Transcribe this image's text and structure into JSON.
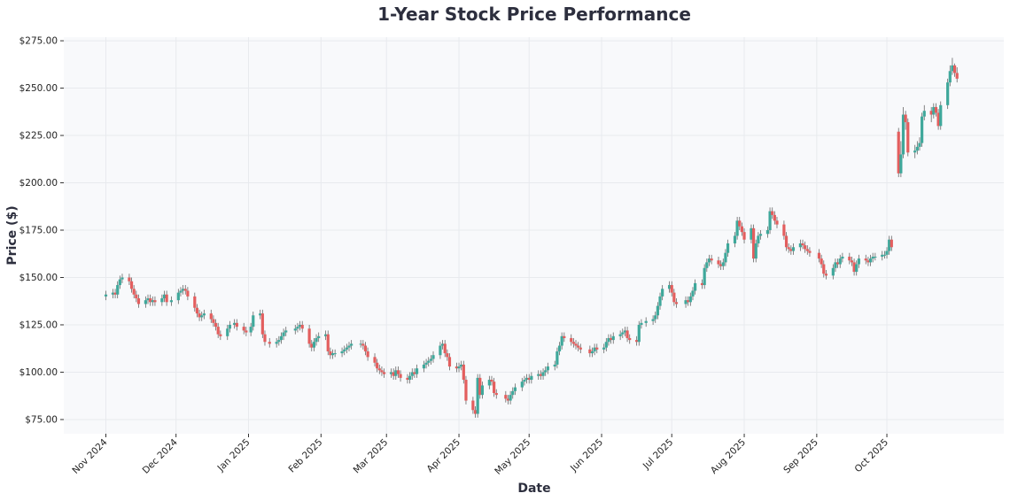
{
  "chart_data": {
    "type": "candlestick",
    "title": "1-Year Stock Price Performance",
    "xlabel": "Date",
    "ylabel": "Price ($)",
    "ylim": [
      67.5,
      276.9
    ],
    "xlim": [
      "2024-10-14",
      "2025-11-20"
    ],
    "grid": true,
    "colors": {
      "up": "#3fa89b",
      "down": "#e35e5e",
      "background": "#f8f9fb",
      "grid": "#e8eaee"
    },
    "yticks": [
      75,
      100,
      125,
      150,
      175,
      200,
      225,
      250,
      275
    ],
    "ytick_labels": [
      "$75.00",
      "$100.00",
      "$125.00",
      "$150.00",
      "$175.00",
      "$200.00",
      "$225.00",
      "$250.00",
      "$275.00"
    ],
    "xticks": [
      "2024-11-01",
      "2024-12-01",
      "2025-01-01",
      "2025-02-01",
      "2025-03-01",
      "2025-04-01",
      "2025-05-01",
      "2025-06-01",
      "2025-07-01",
      "2025-08-01",
      "2025-09-01",
      "2025-10-01"
    ],
    "xtick_labels": [
      "Nov 2024",
      "Dec 2024",
      "Jan 2025",
      "Feb 2025",
      "Mar 2025",
      "Apr 2025",
      "May 2025",
      "Jun 2025",
      "Jul 2025",
      "Aug 2025",
      "Sep 2025",
      "Oct 2025"
    ],
    "dates": [
      "2024-11-01",
      "2024-11-04",
      "2024-11-05",
      "2024-11-06",
      "2024-11-07",
      "2024-11-08",
      "2024-11-11",
      "2024-11-12",
      "2024-11-13",
      "2024-11-14",
      "2024-11-15",
      "2024-11-18",
      "2024-11-19",
      "2024-11-20",
      "2024-11-21",
      "2024-11-22",
      "2024-11-25",
      "2024-11-26",
      "2024-11-27",
      "2024-11-29",
      "2024-12-02",
      "2024-12-03",
      "2024-12-04",
      "2024-12-05",
      "2024-12-06",
      "2024-12-09",
      "2024-12-10",
      "2024-12-11",
      "2024-12-12",
      "2024-12-13",
      "2024-12-16",
      "2024-12-17",
      "2024-12-18",
      "2024-12-19",
      "2024-12-20",
      "2024-12-23",
      "2024-12-24",
      "2024-12-26",
      "2024-12-27",
      "2024-12-30",
      "2024-12-31",
      "2025-01-02",
      "2025-01-03",
      "2025-01-06",
      "2025-01-07",
      "2025-01-08",
      "2025-01-10",
      "2025-01-13",
      "2025-01-14",
      "2025-01-15",
      "2025-01-16",
      "2025-01-17",
      "2025-01-21",
      "2025-01-22",
      "2025-01-23",
      "2025-01-24",
      "2025-01-27",
      "2025-01-28",
      "2025-01-29",
      "2025-01-30",
      "2025-01-31",
      "2025-02-03",
      "2025-02-04",
      "2025-02-05",
      "2025-02-06",
      "2025-02-07",
      "2025-02-10",
      "2025-02-11",
      "2025-02-12",
      "2025-02-13",
      "2025-02-14",
      "2025-02-18",
      "2025-02-19",
      "2025-02-20",
      "2025-02-21",
      "2025-02-24",
      "2025-02-25",
      "2025-02-26",
      "2025-02-27",
      "2025-02-28",
      "2025-03-03",
      "2025-03-04",
      "2025-03-05",
      "2025-03-06",
      "2025-03-07",
      "2025-03-10",
      "2025-03-11",
      "2025-03-12",
      "2025-03-13",
      "2025-03-14",
      "2025-03-17",
      "2025-03-18",
      "2025-03-19",
      "2025-03-20",
      "2025-03-21",
      "2025-03-24",
      "2025-03-25",
      "2025-03-26",
      "2025-03-27",
      "2025-03-28",
      "2025-03-31",
      "2025-04-01",
      "2025-04-02",
      "2025-04-03",
      "2025-04-04",
      "2025-04-07",
      "2025-04-08",
      "2025-04-09",
      "2025-04-10",
      "2025-04-11",
      "2025-04-14",
      "2025-04-15",
      "2025-04-16",
      "2025-04-17",
      "2025-04-21",
      "2025-04-22",
      "2025-04-23",
      "2025-04-24",
      "2025-04-25",
      "2025-04-28",
      "2025-04-29",
      "2025-04-30",
      "2025-05-01",
      "2025-05-02",
      "2025-05-05",
      "2025-05-06",
      "2025-05-07",
      "2025-05-08",
      "2025-05-09",
      "2025-05-12",
      "2025-05-13",
      "2025-05-14",
      "2025-05-15",
      "2025-05-16",
      "2025-05-19",
      "2025-05-20",
      "2025-05-21",
      "2025-05-22",
      "2025-05-23",
      "2025-05-27",
      "2025-05-28",
      "2025-05-29",
      "2025-05-30",
      "2025-06-02",
      "2025-06-03",
      "2025-06-04",
      "2025-06-05",
      "2025-06-06",
      "2025-06-09",
      "2025-06-10",
      "2025-06-11",
      "2025-06-12",
      "2025-06-13",
      "2025-06-16",
      "2025-06-17",
      "2025-06-18",
      "2025-06-20",
      "2025-06-23",
      "2025-06-24",
      "2025-06-25",
      "2025-06-26",
      "2025-06-27",
      "2025-06-30",
      "2025-07-01",
      "2025-07-02",
      "2025-07-03",
      "2025-07-07",
      "2025-07-08",
      "2025-07-09",
      "2025-07-10",
      "2025-07-11",
      "2025-07-14",
      "2025-07-15",
      "2025-07-16",
      "2025-07-17",
      "2025-07-18",
      "2025-07-21",
      "2025-07-22",
      "2025-07-23",
      "2025-07-24",
      "2025-07-25",
      "2025-07-28",
      "2025-07-29",
      "2025-07-30",
      "2025-07-31",
      "2025-08-01",
      "2025-08-04",
      "2025-08-05",
      "2025-08-06",
      "2025-08-07",
      "2025-08-08",
      "2025-08-11",
      "2025-08-12",
      "2025-08-13",
      "2025-08-14",
      "2025-08-15",
      "2025-08-18",
      "2025-08-19",
      "2025-08-20",
      "2025-08-21",
      "2025-08-22",
      "2025-08-25",
      "2025-08-26",
      "2025-08-27",
      "2025-08-28",
      "2025-08-29",
      "2025-09-02",
      "2025-09-03",
      "2025-09-04",
      "2025-09-05",
      "2025-09-08",
      "2025-09-09",
      "2025-09-10",
      "2025-09-11",
      "2025-09-12",
      "2025-09-15",
      "2025-09-16",
      "2025-09-17",
      "2025-09-18",
      "2025-09-19",
      "2025-09-22",
      "2025-09-23",
      "2025-09-24",
      "2025-09-25",
      "2025-09-26",
      "2025-09-29",
      "2025-09-30",
      "2025-10-01",
      "2025-10-02",
      "2025-10-03",
      "2025-10-06",
      "2025-10-07",
      "2025-10-08",
      "2025-10-09",
      "2025-10-10",
      "2025-10-13",
      "2025-10-14",
      "2025-10-15",
      "2025-10-16",
      "2025-10-17",
      "2025-10-20",
      "2025-10-21",
      "2025-10-22",
      "2025-10-23",
      "2025-10-24",
      "2025-10-27",
      "2025-10-28",
      "2025-10-29",
      "2025-10-30",
      "2025-10-31"
    ],
    "open": [
      140,
      141,
      142,
      141,
      146,
      149,
      150,
      148,
      144,
      141,
      139,
      136,
      138,
      139,
      137,
      138,
      137,
      139,
      141,
      137,
      138,
      142,
      143,
      144,
      143,
      140,
      134,
      131,
      129,
      130,
      131,
      128,
      126,
      124,
      120,
      119,
      123,
      125,
      126,
      124,
      122,
      121,
      124,
      130,
      131,
      120,
      116,
      115,
      116,
      117,
      119,
      121,
      122,
      123,
      124,
      125,
      123,
      115,
      113,
      116,
      118,
      119,
      120,
      111,
      109,
      110,
      110,
      111,
      112,
      113,
      114,
      115,
      115,
      114,
      111,
      108,
      105,
      102,
      101,
      100,
      99,
      100,
      98,
      101,
      99,
      97,
      96,
      98,
      100,
      99,
      102,
      104,
      105,
      106,
      107,
      109,
      114,
      115,
      110,
      108,
      103,
      102,
      103,
      104,
      96,
      85,
      80,
      78,
      97,
      88,
      93,
      96,
      95,
      89,
      88,
      86,
      85,
      88,
      90,
      92,
      95,
      96,
      97,
      96,
      98,
      99,
      98,
      100,
      101,
      103,
      104,
      111,
      114,
      119,
      118,
      116,
      115,
      114,
      113,
      112,
      110,
      111,
      113,
      112,
      113,
      116,
      118,
      117,
      119,
      120,
      121,
      122,
      118,
      117,
      116,
      125,
      126,
      127,
      128,
      130,
      135,
      140,
      144,
      146,
      142,
      137,
      136,
      138,
      137,
      140,
      143,
      147,
      146,
      155,
      158,
      160,
      159,
      157,
      156,
      158,
      163,
      168,
      172,
      180,
      177,
      174,
      170,
      176,
      160,
      168,
      172,
      173,
      175,
      185,
      183,
      180,
      178,
      172,
      166,
      165,
      164,
      166,
      168,
      167,
      165,
      164,
      163,
      160,
      157,
      152,
      151,
      155,
      158,
      157,
      160,
      161,
      159,
      158,
      153,
      157,
      160,
      159,
      158,
      160,
      161,
      161,
      162,
      162,
      164,
      170,
      227,
      205,
      215,
      236,
      232,
      216,
      217,
      219,
      221,
      235,
      238,
      236,
      240,
      237,
      230,
      241,
      253,
      259,
      262,
      258
    ],
    "high": [
      143,
      144,
      144,
      148,
      151,
      152,
      152,
      150,
      146,
      143,
      141,
      140,
      141,
      141,
      140,
      140,
      141,
      143,
      143,
      140,
      144,
      145,
      146,
      146,
      145,
      142,
      136,
      133,
      132,
      133,
      133,
      130,
      128,
      126,
      122,
      125,
      127,
      128,
      128,
      126,
      124,
      126,
      132,
      133,
      133,
      122,
      118,
      118,
      119,
      121,
      123,
      124,
      125,
      126,
      127,
      127,
      125,
      117,
      118,
      120,
      121,
      122,
      122,
      113,
      112,
      112,
      113,
      114,
      115,
      116,
      117,
      117,
      117,
      116,
      113,
      110,
      107,
      104,
      103,
      102,
      102,
      102,
      103,
      103,
      101,
      99,
      100,
      102,
      102,
      104,
      106,
      107,
      108,
      109,
      111,
      116,
      117,
      117,
      112,
      110,
      105,
      105,
      106,
      106,
      98,
      87,
      82,
      99,
      99,
      95,
      98,
      98,
      97,
      91,
      90,
      88,
      90,
      92,
      94,
      97,
      98,
      99,
      99,
      100,
      101,
      101,
      102,
      103,
      105,
      106,
      113,
      116,
      121,
      121,
      120,
      118,
      117,
      116,
      115,
      114,
      113,
      115,
      115,
      115,
      118,
      120,
      120,
      121,
      122,
      123,
      124,
      124,
      120,
      119,
      127,
      128,
      129,
      130,
      132,
      137,
      142,
      146,
      148,
      148,
      144,
      139,
      140,
      140,
      142,
      145,
      149,
      149,
      157,
      160,
      162,
      162,
      161,
      159,
      160,
      165,
      170,
      174,
      182,
      182,
      179,
      176,
      178,
      178,
      170,
      174,
      175,
      177,
      187,
      187,
      185,
      182,
      180,
      174,
      168,
      167,
      168,
      170,
      170,
      169,
      167,
      166,
      165,
      162,
      159,
      154,
      157,
      160,
      160,
      162,
      163,
      163,
      161,
      160,
      159,
      162,
      162,
      161,
      162,
      163,
      163,
      164,
      164,
      166,
      172,
      172,
      229,
      222,
      240,
      238,
      234,
      220,
      222,
      224,
      237,
      241,
      240,
      242,
      242,
      239,
      243,
      255,
      262,
      266,
      263,
      261
    ],
    "low": [
      138,
      139,
      139,
      139,
      144,
      147,
      146,
      142,
      139,
      137,
      134,
      134,
      136,
      135,
      135,
      135,
      135,
      137,
      135,
      135,
      136,
      140,
      141,
      141,
      138,
      132,
      129,
      127,
      127,
      128,
      126,
      124,
      122,
      118,
      117,
      117,
      121,
      123,
      122,
      120,
      119,
      119,
      122,
      128,
      118,
      114,
      113,
      113,
      114,
      115,
      117,
      119,
      120,
      121,
      122,
      121,
      113,
      111,
      111,
      114,
      116,
      117,
      109,
      107,
      107,
      108,
      108,
      109,
      110,
      111,
      112,
      113,
      112,
      109,
      106,
      103,
      100,
      99,
      98,
      97,
      97,
      96,
      96,
      97,
      95,
      94,
      94,
      96,
      97,
      97,
      100,
      102,
      103,
      104,
      105,
      107,
      112,
      108,
      106,
      101,
      100,
      100,
      101,
      94,
      83,
      78,
      76,
      76,
      86,
      86,
      91,
      93,
      87,
      86,
      84,
      83,
      83,
      86,
      88,
      90,
      93,
      94,
      94,
      94,
      96,
      96,
      96,
      98,
      99,
      101,
      102,
      109,
      112,
      116,
      114,
      113,
      112,
      111,
      110,
      108,
      108,
      109,
      110,
      110,
      111,
      114,
      115,
      115,
      117,
      118,
      119,
      116,
      115,
      114,
      114,
      123,
      124,
      125,
      126,
      128,
      133,
      138,
      142,
      140,
      135,
      134,
      134,
      135,
      135,
      138,
      141,
      144,
      144,
      153,
      156,
      157,
      155,
      154,
      154,
      156,
      161,
      166,
      170,
      175,
      172,
      168,
      168,
      158,
      158,
      166,
      170,
      171,
      173,
      181,
      178,
      176,
      170,
      164,
      163,
      162,
      162,
      164,
      165,
      163,
      162,
      161,
      158,
      155,
      150,
      149,
      149,
      153,
      155,
      155,
      158,
      157,
      156,
      151,
      151,
      155,
      157,
      156,
      156,
      158,
      159,
      159,
      160,
      160,
      162,
      164,
      203,
      203,
      213,
      228,
      214,
      213,
      215,
      217,
      219,
      233,
      232,
      234,
      235,
      228,
      228,
      239,
      251,
      257,
      256,
      253
    ],
    "close": [
      141,
      142,
      141,
      146,
      149,
      150,
      148,
      144,
      141,
      139,
      136,
      138,
      139,
      137,
      138,
      137,
      139,
      141,
      137,
      138,
      142,
      143,
      144,
      143,
      140,
      134,
      131,
      129,
      130,
      131,
      128,
      126,
      124,
      120,
      119,
      123,
      125,
      126,
      124,
      122,
      121,
      124,
      130,
      131,
      120,
      116,
      115,
      116,
      117,
      119,
      121,
      122,
      123,
      124,
      125,
      123,
      115,
      113,
      116,
      118,
      119,
      120,
      111,
      109,
      110,
      110,
      111,
      112,
      113,
      114,
      115,
      115,
      114,
      111,
      108,
      105,
      102,
      101,
      100,
      99,
      100,
      98,
      101,
      99,
      97,
      96,
      98,
      100,
      99,
      102,
      104,
      105,
      106,
      107,
      109,
      114,
      115,
      110,
      108,
      103,
      102,
      103,
      104,
      96,
      85,
      80,
      78,
      97,
      88,
      93,
      96,
      95,
      89,
      88,
      86,
      85,
      88,
      90,
      92,
      95,
      96,
      97,
      96,
      98,
      99,
      98,
      100,
      101,
      103,
      104,
      111,
      114,
      119,
      118,
      116,
      115,
      114,
      113,
      112,
      110,
      111,
      113,
      112,
      113,
      116,
      118,
      117,
      119,
      120,
      121,
      122,
      118,
      117,
      116,
      125,
      126,
      127,
      128,
      130,
      135,
      140,
      144,
      146,
      142,
      137,
      136,
      138,
      137,
      140,
      143,
      147,
      146,
      155,
      158,
      160,
      159,
      157,
      156,
      158,
      163,
      168,
      172,
      180,
      177,
      174,
      170,
      176,
      160,
      168,
      172,
      173,
      175,
      185,
      183,
      180,
      178,
      172,
      166,
      165,
      164,
      166,
      168,
      167,
      165,
      164,
      163,
      160,
      157,
      152,
      151,
      155,
      158,
      157,
      160,
      161,
      159,
      158,
      153,
      157,
      160,
      159,
      158,
      160,
      161,
      161,
      162,
      162,
      164,
      170,
      166,
      205,
      215,
      236,
      232,
      216,
      217,
      219,
      221,
      235,
      238,
      236,
      240,
      237,
      230,
      241,
      253,
      259,
      262,
      258,
      255
    ]
  }
}
